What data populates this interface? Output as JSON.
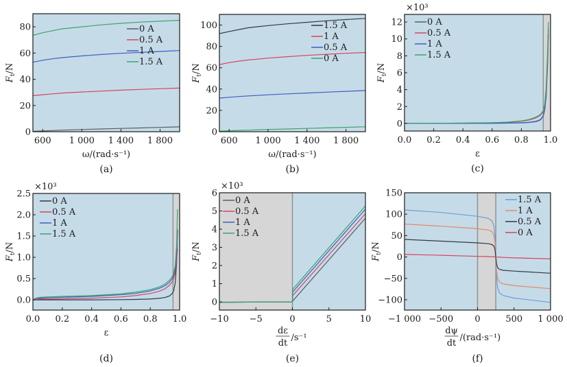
{
  "colors": {
    "plot_bg": "#c6dbe8",
    "shade": "#d6d6d6",
    "frame": "#1a1a1a",
    "gray": "#555e66",
    "red": "#d4465e",
    "blue": "#3d5fbf",
    "green": "#3aa56a",
    "dark": "#2f3a44",
    "lightblue": "#6a9fd6",
    "orange": "#e08a6a"
  },
  "chart_data": [
    {
      "id": "a",
      "type": "line",
      "caption": "(a)",
      "xlabel": "ω/(rad·s⁻¹)",
      "ylabel": "F_t/N",
      "xlim": [
        500,
        2000
      ],
      "ylim": [
        0,
        90
      ],
      "xticks": [
        600,
        1000,
        1400,
        1800
      ],
      "xtick_labels": [
        "600",
        "1 000",
        "1 400",
        "1 800"
      ],
      "yticks": [
        0,
        20,
        40,
        60,
        80
      ],
      "ytick_labels": [
        "0",
        "20",
        "40",
        "60",
        "80"
      ],
      "multiplier": "",
      "legend": "top-right",
      "x": [
        500,
        600,
        700,
        800,
        1000,
        1200,
        1400,
        1600,
        1800,
        2000
      ],
      "series": [
        {
          "name": "0 A",
          "color": "gray",
          "values": [
            0.3,
            0.6,
            0.9,
            1.2,
            1.7,
            2.1,
            2.5,
            2.9,
            3.3,
            3.7
          ]
        },
        {
          "name": "0.5 A",
          "color": "red",
          "values": [
            27.5,
            28.2,
            28.9,
            29.5,
            30.3,
            31.0,
            31.7,
            32.3,
            32.8,
            33.3
          ]
        },
        {
          "name": "1 A",
          "color": "blue",
          "values": [
            53.0,
            54.5,
            55.6,
            56.5,
            57.8,
            58.9,
            59.8,
            60.5,
            61.2,
            61.9
          ]
        },
        {
          "name": "1.5 A",
          "color": "green",
          "values": [
            73.5,
            75.5,
            77.0,
            78.5,
            80.0,
            81.5,
            82.7,
            83.6,
            84.3,
            85.0
          ]
        }
      ]
    },
    {
      "id": "b",
      "type": "line",
      "caption": "(b)",
      "xlabel": "ω/(rad·s⁻¹)",
      "ylabel": "F_t/N",
      "xlim": [
        500,
        2000
      ],
      "ylim": [
        0,
        110
      ],
      "xticks": [
        600,
        1000,
        1400,
        1800
      ],
      "xtick_labels": [
        "600",
        "1 000",
        "1 400",
        "1 800"
      ],
      "yticks": [
        0,
        20,
        40,
        60,
        80,
        100
      ],
      "ytick_labels": [
        "0",
        "20",
        "40",
        "60",
        "80",
        "100"
      ],
      "multiplier": "",
      "legend": "top-right",
      "x": [
        500,
        600,
        700,
        800,
        1000,
        1200,
        1400,
        1600,
        1800,
        2000
      ],
      "series": [
        {
          "name": "1.5 A",
          "color": "dark",
          "values": [
            92.0,
            94.0,
            95.8,
            97.5,
            99.5,
            101.2,
            102.6,
            104.0,
            105.2,
            106.3
          ]
        },
        {
          "name": "1 A",
          "color": "red",
          "values": [
            63.0,
            64.8,
            66.2,
            67.3,
            69.0,
            70.4,
            71.6,
            72.6,
            73.5,
            74.3
          ]
        },
        {
          "name": "0.5 A",
          "color": "blue",
          "values": [
            31.5,
            32.3,
            33.0,
            33.6,
            34.6,
            35.5,
            36.3,
            37.1,
            37.9,
            38.6
          ]
        },
        {
          "name": "0 A",
          "color": "green",
          "values": [
            0.6,
            0.9,
            1.2,
            1.5,
            2.1,
            2.6,
            3.1,
            3.6,
            4.1,
            4.6
          ]
        }
      ]
    },
    {
      "id": "c",
      "type": "line",
      "caption": "(c)",
      "xlabel": "ε",
      "ylabel": "F_t/N",
      "xlim": [
        0,
        1
      ],
      "ylim": [
        -0.9,
        12.9
      ],
      "xticks": [
        0,
        0.2,
        0.4,
        0.6,
        0.8,
        1.0
      ],
      "xtick_labels": [
        "0.0",
        "0.2",
        "0.4",
        "0.6",
        "0.8",
        "1.0"
      ],
      "yticks": [
        0,
        2,
        4,
        6,
        8,
        10,
        12
      ],
      "ytick_labels": [
        "0",
        "2",
        "4",
        "6",
        "8",
        "10",
        "12"
      ],
      "multiplier": "×10³",
      "shade": [
        [
          0.95,
          1.0
        ]
      ],
      "legend": "top-left",
      "x": [
        0,
        0.2,
        0.4,
        0.6,
        0.7,
        0.8,
        0.85,
        0.9,
        0.93,
        0.95,
        0.96,
        0.97,
        0.98,
        0.985
      ],
      "series": [
        {
          "name": "0 A",
          "color": "gray",
          "values": [
            0,
            0,
            0,
            0.02,
            0.04,
            0.08,
            0.13,
            0.25,
            0.45,
            0.9,
            1.6,
            3.2,
            7.0,
            10.5
          ]
        },
        {
          "name": "0.5 A",
          "color": "red",
          "values": [
            0,
            0.01,
            0.03,
            0.07,
            0.12,
            0.25,
            0.38,
            0.65,
            0.95,
            1.4,
            2.1,
            3.8,
            7.8,
            11.0
          ]
        },
        {
          "name": "1 A",
          "color": "blue",
          "values": [
            0,
            0,
            0,
            0.01,
            0.03,
            0.06,
            0.1,
            0.2,
            0.4,
            0.85,
            1.6,
            3.4,
            7.6,
            11.3
          ]
        },
        {
          "name": "1.5 A",
          "color": "green",
          "values": [
            0,
            0.02,
            0.04,
            0.09,
            0.15,
            0.3,
            0.45,
            0.75,
            1.05,
            1.5,
            2.3,
            4.2,
            8.5,
            12.0
          ]
        }
      ]
    },
    {
      "id": "d",
      "type": "line",
      "caption": "(d)",
      "xlabel": "ε",
      "ylabel": "F_t/N",
      "xlim": [
        0,
        1
      ],
      "ylim": [
        -0.24,
        2.5
      ],
      "xticks": [
        0,
        0.2,
        0.4,
        0.6,
        0.8,
        1.0
      ],
      "xtick_labels": [
        "0.0",
        "0.2",
        "0.4",
        "0.6",
        "0.8",
        "1.0"
      ],
      "yticks": [
        0,
        0.5,
        1.0,
        1.5,
        2.0,
        2.5
      ],
      "ytick_labels": [
        "0.0",
        "0.5",
        "1.0",
        "1.5",
        "2.0",
        "2.5"
      ],
      "multiplier": "×10³",
      "shade": [
        [
          0.955,
          1.0
        ]
      ],
      "legend": "top-left",
      "x": [
        0,
        0.02,
        0.05,
        0.1,
        0.2,
        0.4,
        0.6,
        0.7,
        0.8,
        0.86,
        0.9,
        0.93,
        0.95,
        0.96,
        0.97,
        0.98,
        0.985
      ],
      "series": [
        {
          "name": "0 A",
          "color": "dark",
          "values": [
            0,
            0.0,
            0.0,
            0.0,
            0.0,
            0.0,
            0.005,
            0.01,
            0.02,
            0.035,
            0.055,
            0.09,
            0.15,
            0.22,
            0.4,
            0.9,
            1.65
          ]
        },
        {
          "name": "0.5 A",
          "color": "red",
          "values": [
            0,
            0.01,
            0.02,
            0.02,
            0.025,
            0.04,
            0.07,
            0.1,
            0.15,
            0.2,
            0.26,
            0.34,
            0.42,
            0.5,
            0.65,
            0.95,
            1.2
          ]
        },
        {
          "name": "1 A",
          "color": "blue",
          "values": [
            0,
            0.03,
            0.04,
            0.05,
            0.06,
            0.08,
            0.12,
            0.15,
            0.21,
            0.27,
            0.33,
            0.41,
            0.5,
            0.58,
            0.72,
            1.05,
            1.6
          ]
        },
        {
          "name": "1.5 A",
          "color": "green",
          "values": [
            0,
            0.04,
            0.06,
            0.07,
            0.08,
            0.1,
            0.14,
            0.18,
            0.24,
            0.3,
            0.37,
            0.46,
            0.55,
            0.64,
            0.8,
            1.3,
            2.13
          ]
        }
      ]
    },
    {
      "id": "e",
      "type": "line",
      "caption": "(e)",
      "xlabel_num": "dε",
      "xlabel_den": "dt",
      "xlabel_unit": "/s⁻¹",
      "ylabel": "F_t/N",
      "xlim": [
        -10,
        10
      ],
      "ylim": [
        -0.45,
        6
      ],
      "xticks": [
        -10,
        -5,
        0,
        5,
        10
      ],
      "xtick_labels": [
        "−10",
        "−5",
        "0",
        "5",
        "10"
      ],
      "yticks": [
        0,
        1,
        2,
        3,
        4,
        5,
        6
      ],
      "ytick_labels": [
        "0",
        "1",
        "2",
        "3",
        "4",
        "5",
        "6"
      ],
      "multiplier": "×10³",
      "shade": [
        [
          -10,
          0
        ]
      ],
      "legend": "top-left",
      "x": [
        -10,
        0,
        0.05,
        10
      ],
      "series": [
        {
          "name": "0 A",
          "color": "gray",
          "values": [
            -0.02,
            0.0,
            0.05,
            4.6
          ]
        },
        {
          "name": "0.5 A",
          "color": "red",
          "values": [
            -0.02,
            0.0,
            0.35,
            4.85
          ]
        },
        {
          "name": "1 A",
          "color": "blue",
          "values": [
            -0.02,
            0.0,
            0.55,
            5.1
          ]
        },
        {
          "name": "1.5 A",
          "color": "green",
          "values": [
            -0.02,
            0.0,
            0.7,
            5.28
          ]
        }
      ]
    },
    {
      "id": "f",
      "type": "line",
      "caption": "(f)",
      "xlabel_num": "dψ",
      "xlabel_den": "dt",
      "xlabel_unit": "/(rad·s⁻¹)",
      "ylabel": "F_t/N",
      "xlim": [
        -1000,
        1000
      ],
      "ylim": [
        -124,
        150
      ],
      "xticks": [
        -1000,
        -500,
        0,
        500,
        1000
      ],
      "xtick_labels": [
        "−1 000",
        "−500",
        "0",
        "500",
        "1 000"
      ],
      "yticks": [
        -100,
        -50,
        0,
        50,
        100,
        150
      ],
      "ytick_labels": [
        "−100",
        "−50",
        "0",
        "50",
        "100",
        "150"
      ],
      "multiplier": "",
      "shade": [
        [
          0,
          250
        ]
      ],
      "legend": "top-right",
      "x": [
        -1000,
        -500,
        0,
        150,
        200,
        225,
        240,
        250,
        260,
        275,
        300,
        350,
        500,
        1000
      ],
      "series": [
        {
          "name": "1.5 A",
          "color": "lightblue",
          "values": [
            110,
            104,
            95,
            90,
            84,
            72,
            45,
            0,
            -45,
            -72,
            -84,
            -90,
            -96,
            -106
          ]
        },
        {
          "name": "1 A",
          "color": "orange",
          "values": [
            77,
            72,
            66,
            63,
            59,
            50,
            32,
            0,
            -32,
            -50,
            -58,
            -63,
            -67,
            -74
          ]
        },
        {
          "name": "0.5 A",
          "color": "dark",
          "values": [
            41,
            37,
            33,
            31,
            29,
            25,
            16,
            0,
            -16,
            -25,
            -29,
            -31,
            -33,
            -38
          ]
        },
        {
          "name": "0 A",
          "color": "red",
          "values": [
            6,
            4,
            1.5,
            0.8,
            0.5,
            0.3,
            0.2,
            0,
            -0.2,
            -0.3,
            -0.5,
            -1,
            -2,
            -4.5
          ]
        }
      ]
    }
  ]
}
